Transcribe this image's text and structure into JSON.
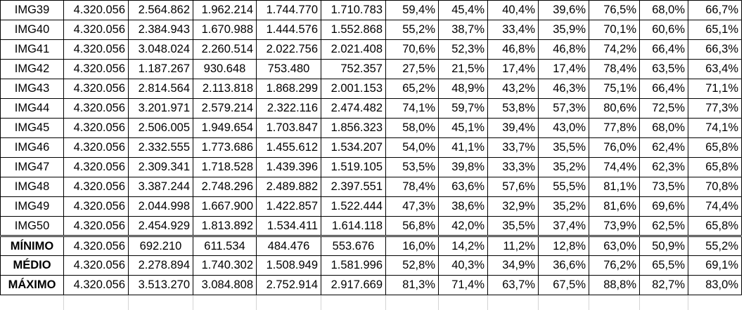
{
  "rows": [
    {
      "label": "IMG39",
      "cells": [
        "4.320.056",
        "2.564.862",
        "1.962.214",
        "1.744.770",
        "1.710.783",
        "59,4%",
        "45,4%",
        "40,4%",
        "39,6%",
        "76,5%",
        "68,0%",
        "66,7%"
      ]
    },
    {
      "label": "IMG40",
      "cells": [
        "4.320.056",
        "2.384.943",
        "1.670.988",
        "1.444.576",
        "1.552.868",
        "55,2%",
        "38,7%",
        "33,4%",
        "35,9%",
        "70,1%",
        "60,6%",
        "65,1%"
      ]
    },
    {
      "label": "IMG41",
      "cells": [
        "4.320.056",
        "3.048.024",
        "2.260.514",
        "2.022.756",
        "2.021.408",
        "70,6%",
        "52,3%",
        "46,8%",
        "46,8%",
        "74,2%",
        "66,4%",
        "66,3%"
      ]
    },
    {
      "label": "IMG42",
      "cells": [
        "4.320.056",
        "1.187.267",
        "930.648",
        "753.480",
        "752.357",
        "27,5%",
        "21,5%",
        "17,4%",
        "17,4%",
        "78,4%",
        "63,5%",
        "63,4%"
      ]
    },
    {
      "label": "IMG43",
      "cells": [
        "4.320.056",
        "2.814.564",
        "2.113.818",
        "1.868.299",
        "2.001.153",
        "65,2%",
        "48,9%",
        "43,2%",
        "46,3%",
        "75,1%",
        "66,4%",
        "71,1%"
      ]
    },
    {
      "label": "IMG44",
      "cells": [
        "4.320.056",
        "3.201.971",
        "2.579.214",
        "2.322.116",
        "2.474.482",
        "74,1%",
        "59,7%",
        "53,8%",
        "57,3%",
        "80,6%",
        "72,5%",
        "77,3%"
      ]
    },
    {
      "label": "IMG45",
      "cells": [
        "4.320.056",
        "2.506.005",
        "1.949.654",
        "1.703.847",
        "1.856.323",
        "58,0%",
        "45,1%",
        "39,4%",
        "43,0%",
        "77,8%",
        "68,0%",
        "74,1%"
      ]
    },
    {
      "label": "IMG46",
      "cells": [
        "4.320.056",
        "2.332.555",
        "1.773.686",
        "1.455.612",
        "1.534.207",
        "54,0%",
        "41,1%",
        "33,7%",
        "35,5%",
        "76,0%",
        "62,4%",
        "65,8%"
      ]
    },
    {
      "label": "IMG47",
      "cells": [
        "4.320.056",
        "2.309.341",
        "1.718.528",
        "1.439.396",
        "1.519.105",
        "53,5%",
        "39,8%",
        "33,3%",
        "35,2%",
        "74,4%",
        "62,3%",
        "65,8%"
      ]
    },
    {
      "label": "IMG48",
      "cells": [
        "4.320.056",
        "3.387.244",
        "2.748.296",
        "2.489.882",
        "2.397.551",
        "78,4%",
        "63,6%",
        "57,6%",
        "55,5%",
        "81,1%",
        "73,5%",
        "70,8%"
      ]
    },
    {
      "label": "IMG49",
      "cells": [
        "4.320.056",
        "2.044.998",
        "1.667.900",
        "1.422.857",
        "1.522.444",
        "47,3%",
        "38,6%",
        "32,9%",
        "35,2%",
        "81,6%",
        "69,6%",
        "74,4%"
      ]
    },
    {
      "label": "IMG50",
      "cells": [
        "4.320.056",
        "2.454.929",
        "1.813.892",
        "1.534.411",
        "1.614.118",
        "56,8%",
        "42,0%",
        "35,5%",
        "37,4%",
        "73,9%",
        "62,5%",
        "65,8%"
      ]
    }
  ],
  "summary": [
    {
      "label": "MÍNIMO",
      "cells": [
        "4.320.056",
        "692.210",
        "611.534",
        "484.476",
        "553.676",
        "16,0%",
        "14,2%",
        "11,2%",
        "12,8%",
        "63,0%",
        "50,9%",
        "55,2%"
      ]
    },
    {
      "label": "MÉDIO",
      "cells": [
        "4.320.056",
        "2.278.894",
        "1.740.302",
        "1.508.949",
        "1.581.996",
        "52,8%",
        "40,3%",
        "34,9%",
        "36,6%",
        "76,2%",
        "65,5%",
        "69,1%"
      ]
    },
    {
      "label": "MÁXIMO",
      "cells": [
        "4.320.056",
        "3.513.270",
        "3.084.808",
        "2.752.914",
        "2.917.669",
        "81,3%",
        "71,4%",
        "63,7%",
        "67,5%",
        "88,8%",
        "82,7%",
        "83,0%"
      ]
    }
  ]
}
